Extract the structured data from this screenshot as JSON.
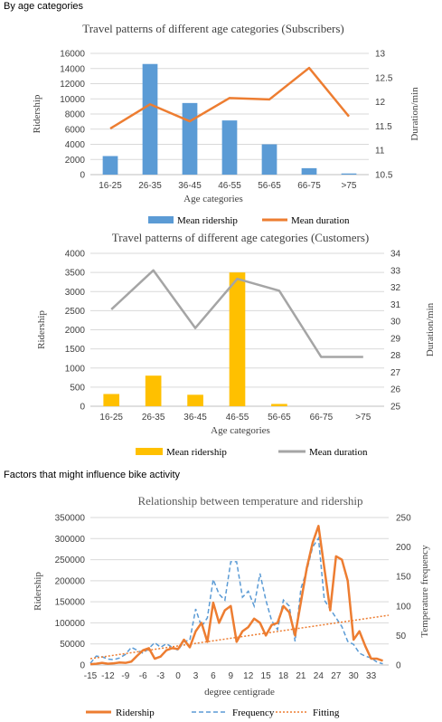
{
  "headings": {
    "section1": "By age categories",
    "section2": "Factors that might influence bike activity"
  },
  "colors": {
    "blue_bar": "#5B9BD5",
    "orange": "#ED7D31",
    "gold": "#FFC000",
    "gray": "#A5A5A5"
  },
  "chart_data": [
    {
      "type": "bar",
      "title": "Travel patterns of different age categories (Subscribers)",
      "xlabel": "Age categories",
      "ylabel": "Ridership",
      "y2label": "Duration/min",
      "categories": [
        "16-25",
        "26-35",
        "36-45",
        "46-55",
        "56-65",
        "66-75",
        ">75"
      ],
      "ylim": [
        0,
        16000
      ],
      "yticks": [
        "0",
        "2000",
        "4000",
        "6000",
        "8000",
        "10000",
        "12000",
        "14000",
        "16000"
      ],
      "y2lim": [
        10.5,
        13
      ],
      "y2ticks": [
        "10.5",
        "11",
        "11.5",
        "12",
        "12.5",
        "13"
      ],
      "series": [
        {
          "name": "Mean ridership",
          "kind": "bar",
          "axis": "left",
          "values": [
            2450,
            14600,
            9450,
            7150,
            4000,
            850,
            150
          ]
        },
        {
          "name": "Mean duration",
          "kind": "line",
          "axis": "right",
          "values": [
            11.45,
            11.95,
            11.6,
            12.08,
            12.05,
            12.7,
            11.7
          ]
        }
      ],
      "legend": "bottom"
    },
    {
      "type": "bar",
      "title": "Travel patterns of different age categories (Customers)",
      "xlabel": "Age categories",
      "ylabel": "Ridership",
      "y2label": "Duration/min",
      "categories": [
        "16-25",
        "26-35",
        "36-45",
        "46-55",
        "56-65",
        "66-75",
        ">75"
      ],
      "ylim": [
        0,
        4000
      ],
      "yticks": [
        "0",
        "500",
        "1000",
        "1500",
        "2000",
        "2500",
        "3000",
        "3500",
        "4000"
      ],
      "y2lim": [
        25,
        34
      ],
      "y2ticks": [
        "25",
        "26",
        "27",
        "28",
        "29",
        "30",
        "31",
        "32",
        "33",
        "34"
      ],
      "series": [
        {
          "name": "Mean ridership",
          "kind": "bar",
          "axis": "left",
          "values": [
            320,
            800,
            300,
            3500,
            60,
            0,
            0
          ]
        },
        {
          "name": "Mean duration",
          "kind": "line",
          "axis": "right",
          "values": [
            30.7,
            33,
            29.6,
            32.5,
            31.8,
            27.9,
            27.9
          ]
        }
      ],
      "legend": "bottom"
    },
    {
      "type": "line",
      "title": "Relationship between temperature and ridership",
      "xlabel": "degree centigrade",
      "ylabel": "Ridership",
      "y2label": "Temperature frequency",
      "xlim": [
        -15,
        36
      ],
      "xticks": [
        "-15",
        "-12",
        "-9",
        "-6",
        "-3",
        "0",
        "3",
        "6",
        "9",
        "12",
        "15",
        "18",
        "21",
        "24",
        "27",
        "30",
        "33"
      ],
      "ylim": [
        0,
        350000
      ],
      "yticks": [
        "0",
        "50000",
        "100000",
        "150000",
        "200000",
        "250000",
        "300000",
        "350000"
      ],
      "y2lim": [
        0,
        250
      ],
      "y2ticks": [
        "0",
        "50",
        "100",
        "150",
        "200",
        "250"
      ],
      "x": [
        -15,
        -14,
        -13,
        -12,
        -11,
        -10,
        -9,
        -8,
        -7,
        -6,
        -5,
        -4,
        -3,
        -2,
        -1,
        0,
        1,
        2,
        3,
        4,
        5,
        6,
        7,
        8,
        9,
        10,
        11,
        12,
        13,
        14,
        15,
        16,
        17,
        18,
        19,
        20,
        21,
        22,
        23,
        24,
        25,
        26,
        27,
        28,
        29,
        30,
        31,
        32,
        33,
        34,
        35
      ],
      "series": [
        {
          "name": "Ridership",
          "axis": "left",
          "style": "solid",
          "values": [
            2000,
            3000,
            5000,
            3000,
            4000,
            6000,
            5000,
            8000,
            22000,
            35000,
            40000,
            15000,
            20000,
            35000,
            40000,
            38000,
            60000,
            42000,
            80000,
            100000,
            55000,
            148000,
            100000,
            130000,
            140000,
            55000,
            80000,
            90000,
            110000,
            100000,
            70000,
            95000,
            100000,
            140000,
            125000,
            70000,
            150000,
            230000,
            290000,
            330000,
            230000,
            130000,
            258000,
            250000,
            200000,
            60000,
            80000,
            45000,
            15000,
            15000,
            10000
          ]
        },
        {
          "name": "Frequency",
          "axis": "right",
          "style": "dashed",
          "values": [
            3,
            15,
            14,
            10,
            9,
            12,
            18,
            30,
            25,
            20,
            28,
            38,
            30,
            36,
            30,
            25,
            40,
            42,
            95,
            65,
            80,
            145,
            120,
            110,
            175,
            175,
            115,
            125,
            100,
            155,
            110,
            75,
            60,
            110,
            100,
            40,
            130,
            160,
            200,
            215,
            110,
            95,
            80,
            65,
            40,
            35,
            20,
            15,
            12,
            5,
            2
          ]
        },
        {
          "name": "Fitting",
          "axis": "left",
          "style": "dotted",
          "linear": [
            -15,
            15000,
            36,
            118000
          ]
        }
      ],
      "legend": "bottom"
    }
  ]
}
